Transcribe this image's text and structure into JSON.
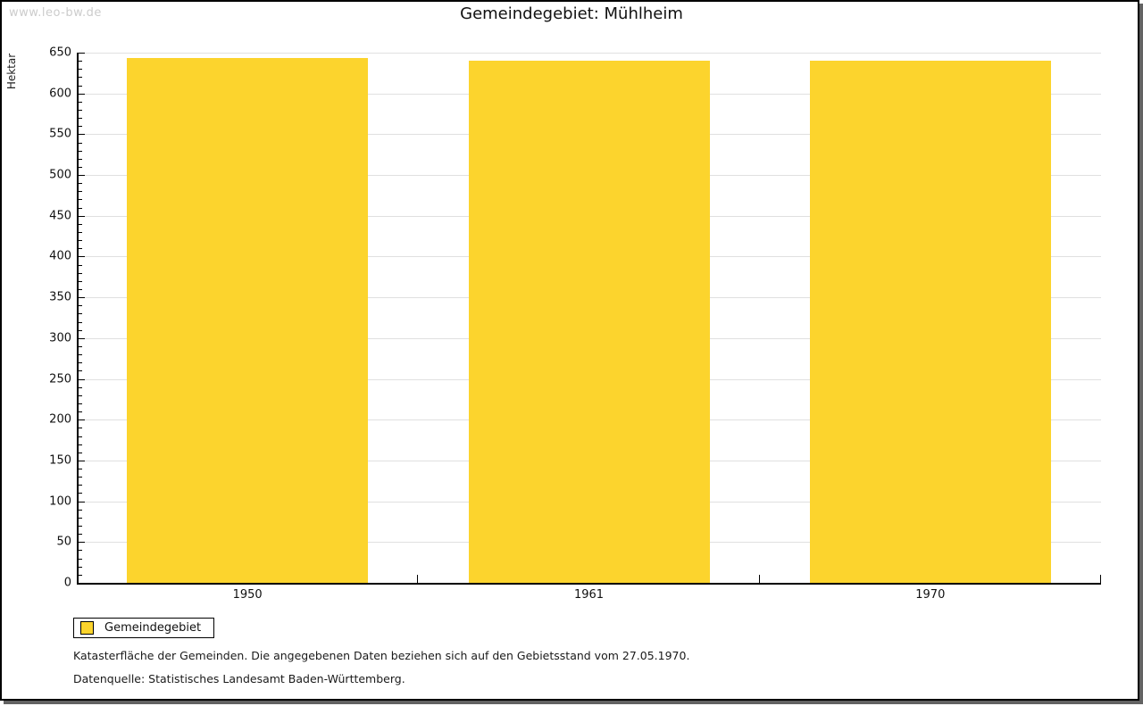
{
  "watermark": "www.leo-bw.de",
  "title": "Gemeindegebiet: Mühlheim",
  "legend": {
    "label": "Gemeindegebiet"
  },
  "footnotes": {
    "line1": "Katasterfläche der Gemeinden. Die angegebenen Daten beziehen sich auf den Gebietsstand vom 27.05.1970.",
    "line2": "Datenquelle: Statistisches Landesamt Baden-Württemberg."
  },
  "colors": {
    "bar_fill": "#fcd42d",
    "gridline": "#e0e0e0",
    "axis": "#000000",
    "watermark": "#cccccc",
    "frame_shadow": "#636363"
  },
  "chart_data": {
    "type": "bar",
    "title": "Gemeindegebiet: Mühlheim",
    "categories": [
      "1950",
      "1961",
      "1970"
    ],
    "series": [
      {
        "name": "Gemeindegebiet",
        "values": [
          643,
          640,
          640
        ],
        "color": "#fcd42d"
      }
    ],
    "xlabel": "",
    "ylabel": "Hektar",
    "ylim": [
      0,
      650
    ],
    "ytick_major_step": 50,
    "ytick_minor_step": 10,
    "grid": "horizontal-major",
    "legend_position": "bottom-left",
    "unit": "Hektar"
  }
}
